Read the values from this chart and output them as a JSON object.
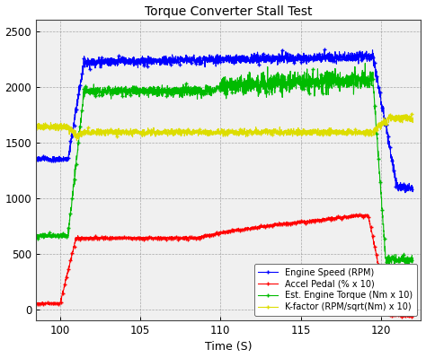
{
  "title": "Torque Converter Stall Test",
  "xlabel": "Time (S)",
  "xlim": [
    98.5,
    122.5
  ],
  "ylim": [
    -100,
    2600
  ],
  "xticks": [
    100,
    105,
    110,
    115,
    120
  ],
  "yticks": [
    0,
    500,
    1000,
    1500,
    2000,
    2500
  ],
  "colors": {
    "engine_speed": "#0000FF",
    "accel_pedal": "#FF0000",
    "est_torque": "#00BB00",
    "k_factor": "#DDDD00"
  },
  "legend_labels": [
    "Engine Speed (RPM)",
    "Accel Pedal (% x 10)",
    "Est. Engine Torque (Nm x 10)",
    "K-factor (RPM/sqrt(Nm) x 10)"
  ],
  "bg_color": "#F0F0F0",
  "fig_color": "#FFFFFF",
  "grid_color": "#888888"
}
